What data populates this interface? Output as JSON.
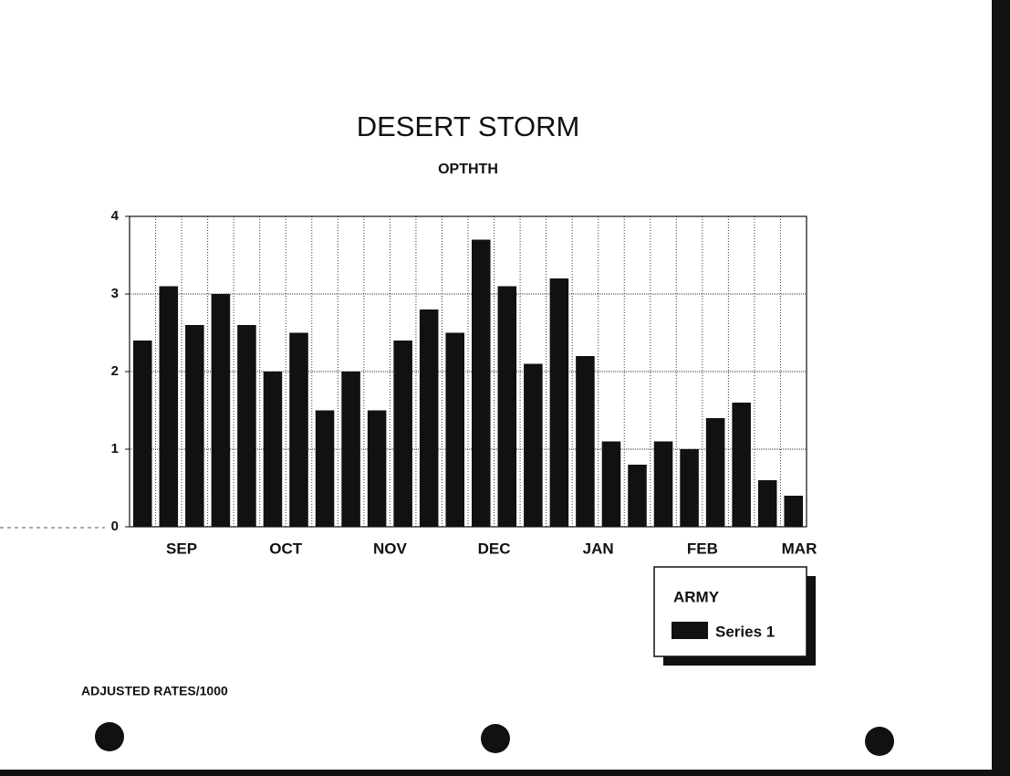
{
  "chart_data": {
    "type": "bar",
    "title": "DESERT STORM",
    "subtitle": "OPTHTH",
    "categories": [
      null,
      "SEP",
      null,
      null,
      null,
      "OCT",
      null,
      null,
      null,
      "NOV",
      null,
      null,
      null,
      "DEC",
      null,
      null,
      null,
      "JAN",
      null,
      null,
      null,
      "FEB",
      null,
      null,
      null,
      "MAR"
    ],
    "series": [
      {
        "name": "Series 1",
        "color": "#111111",
        "values": [
          2.4,
          3.1,
          2.6,
          3.0,
          2.6,
          2.0,
          2.5,
          1.5,
          2.0,
          1.5,
          2.4,
          2.8,
          2.5,
          3.7,
          3.1,
          2.1,
          3.2,
          2.2,
          1.1,
          0.8,
          1.1,
          1.0,
          1.4,
          1.6,
          0.6,
          0.4
        ]
      }
    ],
    "ylim": [
      0,
      4
    ],
    "yticks": [
      0,
      1,
      2,
      3,
      4
    ],
    "grid": true,
    "legend_title": "ARMY",
    "legend": "bottom-right",
    "footnote": "ADJUSTED RATES/1000"
  }
}
